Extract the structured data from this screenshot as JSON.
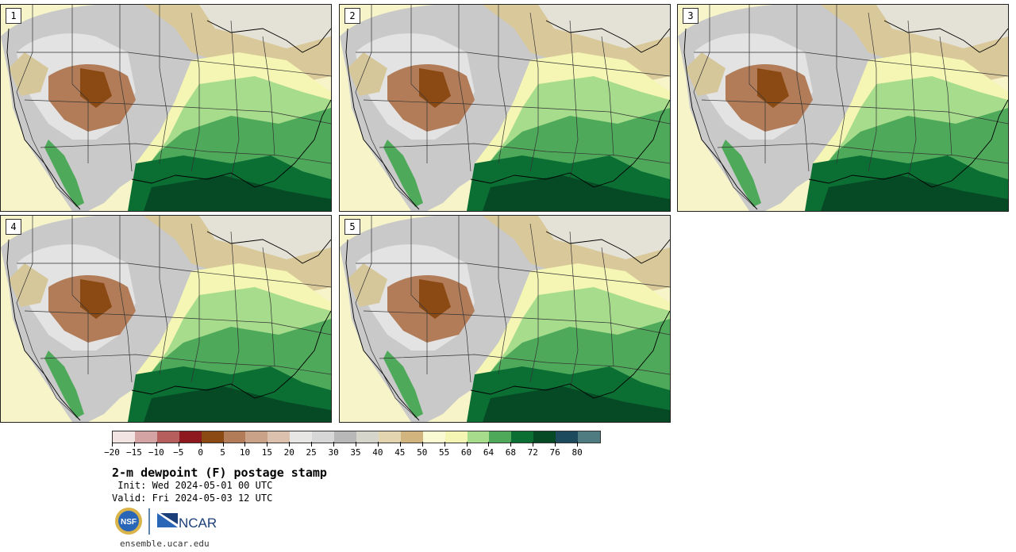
{
  "panels": [
    {
      "label": "1"
    },
    {
      "label": "2"
    },
    {
      "label": "3"
    },
    {
      "label": "4"
    },
    {
      "label": "5"
    }
  ],
  "legend": {
    "colors": [
      "#f3e4e4",
      "#d4a3a3",
      "#b65e5e",
      "#8e1a1f",
      "#8b4a14",
      "#b27c58",
      "#c9a287",
      "#dcc1ae",
      "#e8e5e5",
      "#d7d7d7",
      "#b8b8b8",
      "#d6d5cc",
      "#e2d5b0",
      "#d2b57e",
      "#fbfbd3",
      "#f5f6b3",
      "#a6dc8b",
      "#4eaa5a",
      "#0b6f34",
      "#054a25",
      "#1d4a5d",
      "#4f7c80"
    ],
    "ticks": [
      "−20",
      "−15",
      "−10",
      "−5",
      "0",
      "5",
      "10",
      "15",
      "20",
      "25",
      "30",
      "35",
      "40",
      "45",
      "50",
      "55",
      "60",
      "64",
      "68",
      "72",
      "76",
      "80"
    ]
  },
  "title": "2-m dewpoint (F) postage stamp",
  "init_line": " Init: Wed 2024-05-01 00 UTC",
  "valid_line": "Valid: Fri 2024-05-03 12 UTC",
  "logo": {
    "nsf": "NSF",
    "ncar": "NCAR"
  },
  "footer": "ensemble.ucar.edu"
}
